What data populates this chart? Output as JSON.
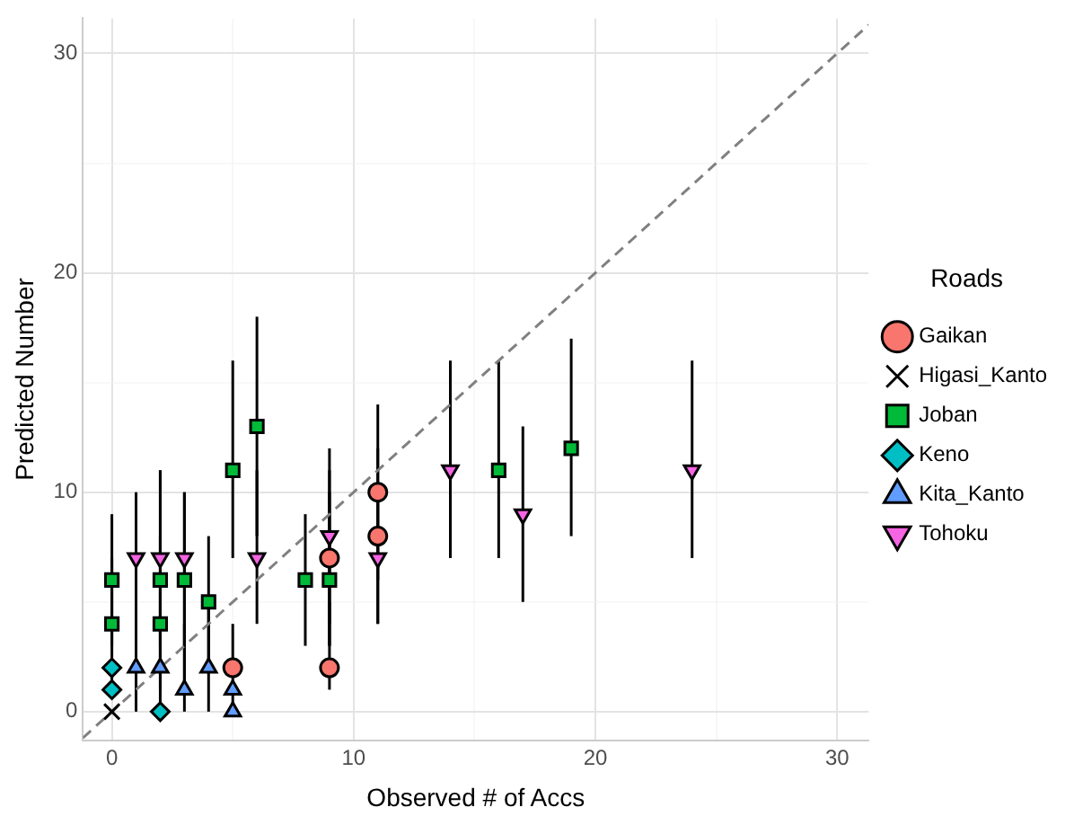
{
  "chart_data": {
    "type": "scatter",
    "xlabel": "Observed # of Accs",
    "ylabel": "Predicted Number",
    "legend_title": "Roads",
    "legend": "right",
    "grid": true,
    "xlim": [
      -1.2,
      31.3
    ],
    "ylim": [
      -1.3,
      31.6
    ],
    "xticks": [
      0,
      {
        "value": 5,
        "label": null
      },
      10,
      {
        "value": 15,
        "label": null
      },
      20,
      {
        "value": 25,
        "label": null
      },
      30
    ],
    "yticks": [
      0,
      {
        "value": 5,
        "label": null
      },
      10,
      {
        "value": 15,
        "label": null
      },
      20,
      {
        "value": 25,
        "label": null
      },
      30
    ],
    "series": [
      {
        "type": "line",
        "color": "#808080",
        "line_style": "dashed",
        "marker": "none",
        "x": [
          -1.2,
          31.3
        ],
        "values": [
          -1.2,
          31.3
        ]
      },
      {
        "name": "Gaikan",
        "color": "#f8766d",
        "marker": "circle",
        "x": [
          5,
          9,
          9,
          11,
          11
        ],
        "values": [
          2,
          2,
          7,
          8,
          10
        ],
        "errors": [
          [
            0,
            4
          ],
          [
            1,
            5
          ],
          [
            3,
            11
          ],
          [
            4,
            12
          ],
          [
            6,
            14
          ]
        ]
      },
      {
        "name": "Higasi_Kanto",
        "color": "#000000",
        "marker": "cross",
        "x": [
          0
        ],
        "values": [
          0
        ],
        "errors": [
          null
        ]
      },
      {
        "name": "Joban",
        "color": "#00ba38",
        "marker": "square",
        "x": [
          0,
          0,
          2,
          2,
          3,
          4,
          5,
          6,
          8,
          9,
          16,
          19
        ],
        "values": [
          6,
          4,
          6,
          4,
          6,
          5,
          11,
          13,
          6,
          6,
          11,
          12
        ],
        "errors": [
          [
            3,
            9
          ],
          [
            1,
            7
          ],
          [
            2,
            11
          ],
          [
            1,
            8
          ],
          [
            1,
            10
          ],
          [
            2,
            8
          ],
          [
            7,
            16
          ],
          [
            8,
            18
          ],
          [
            3,
            9
          ],
          [
            3,
            10
          ],
          [
            7,
            16
          ],
          [
            8,
            17
          ]
        ]
      },
      {
        "name": "Keno",
        "color": "#00bfc4",
        "marker": "diamond",
        "x": [
          0,
          0,
          2
        ],
        "values": [
          2,
          1,
          0
        ],
        "errors": [
          null,
          null,
          null
        ]
      },
      {
        "name": "Kita_Kanto",
        "color": "#619cff",
        "marker": "triangle",
        "x": [
          1,
          2,
          3,
          4,
          5,
          5
        ],
        "values": [
          2,
          2,
          1,
          2,
          1,
          0
        ],
        "errors": [
          [
            0,
            5
          ],
          [
            0,
            6
          ],
          [
            0,
            4
          ],
          [
            0,
            5
          ],
          null,
          null
        ]
      },
      {
        "name": "Tohoku",
        "color": "#f564e3",
        "marker": "triangle_down",
        "x": [
          1,
          2,
          3,
          6,
          9,
          11,
          14,
          17,
          24
        ],
        "values": [
          7,
          7,
          7,
          7,
          8,
          7,
          11,
          9,
          11
        ],
        "errors": [
          [
            3,
            10
          ],
          [
            3,
            11
          ],
          [
            3,
            10
          ],
          [
            4,
            11
          ],
          [
            4,
            12
          ],
          [
            4,
            10
          ],
          [
            7,
            16
          ],
          [
            5,
            13
          ],
          [
            7,
            16
          ]
        ]
      }
    ]
  }
}
